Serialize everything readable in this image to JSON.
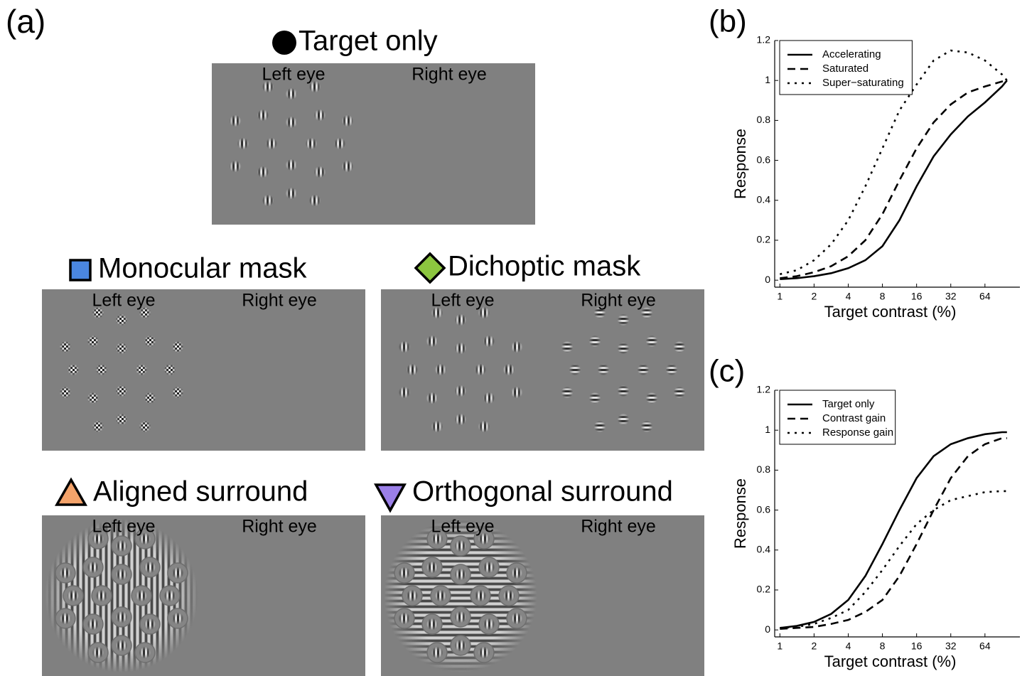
{
  "stimuli_panel_label": "(a)",
  "stimuli": [
    {
      "title": "Target only",
      "left_label": "Left eye",
      "right_label": "Right eye"
    },
    {
      "title": "Monocular mask",
      "left_label": "Left eye",
      "right_label": "Right eye"
    },
    {
      "title": "Dichoptic mask",
      "left_label": "Left eye",
      "right_label": "Right eye"
    },
    {
      "title": "Aligned surround",
      "left_label": "Left eye",
      "right_label": "Right eye"
    },
    {
      "title": "Orthogonal surround",
      "left_label": "Left eye",
      "right_label": "Right eye"
    }
  ],
  "chart_data": [
    {
      "type": "line",
      "panel_label": "(b)",
      "x_label": "Target contrast (%)",
      "y_label": "Response",
      "xscale": "log",
      "xlim": [
        0.9,
        130
      ],
      "xticks": [
        1,
        2,
        4,
        8,
        16,
        32,
        64
      ],
      "ylim": [
        -0.035,
        1.2
      ],
      "yticks": [
        0,
        0.2,
        0.4,
        0.6,
        0.8,
        1,
        1.2
      ],
      "legend": "upper left",
      "x": [
        1,
        1.41,
        2,
        2.83,
        4,
        5.66,
        8,
        11.3,
        16,
        22.6,
        32,
        45.3,
        64,
        90.5,
        100
      ],
      "series": [
        {
          "name": "Accelerating",
          "color": "#000000",
          "dash": "solid",
          "values": [
            0.005,
            0.01,
            0.02,
            0.035,
            0.06,
            0.1,
            0.17,
            0.3,
            0.47,
            0.62,
            0.73,
            0.82,
            0.89,
            0.97,
            1.0
          ]
        },
        {
          "name": "Saturated",
          "color": "#000000",
          "dash": "dashed",
          "values": [
            0.01,
            0.02,
            0.04,
            0.07,
            0.12,
            0.2,
            0.33,
            0.5,
            0.66,
            0.79,
            0.88,
            0.94,
            0.97,
            0.995,
            1.0
          ]
        },
        {
          "name": "Super−saturating",
          "color": "#000000",
          "dash": "dotted",
          "values": [
            0.03,
            0.05,
            0.1,
            0.18,
            0.3,
            0.47,
            0.66,
            0.85,
            0.98,
            1.1,
            1.15,
            1.14,
            1.1,
            1.03,
            1.0
          ]
        }
      ]
    },
    {
      "type": "line",
      "panel_label": "(c)",
      "x_label": "Target contrast (%)",
      "y_label": "Response",
      "xscale": "log",
      "xlim": [
        0.9,
        130
      ],
      "xticks": [
        1,
        2,
        4,
        8,
        16,
        32,
        64
      ],
      "ylim": [
        -0.035,
        1.2
      ],
      "yticks": [
        0,
        0.2,
        0.4,
        0.6,
        0.8,
        1,
        1.2
      ],
      "legend": "upper left",
      "x": [
        1,
        1.41,
        2,
        2.83,
        4,
        5.66,
        8,
        11.3,
        16,
        22.6,
        32,
        45.3,
        64,
        90.5,
        100
      ],
      "series": [
        {
          "name": "Target only",
          "color": "#000000",
          "dash": "solid",
          "values": [
            0.01,
            0.02,
            0.04,
            0.08,
            0.15,
            0.27,
            0.43,
            0.6,
            0.76,
            0.87,
            0.93,
            0.96,
            0.98,
            0.99,
            0.99
          ]
        },
        {
          "name": "Contrast gain",
          "color": "#000000",
          "dash": "dashed",
          "values": [
            0.005,
            0.01,
            0.015,
            0.03,
            0.05,
            0.09,
            0.15,
            0.27,
            0.43,
            0.6,
            0.76,
            0.87,
            0.93,
            0.96,
            0.96
          ]
        },
        {
          "name": "Response gain",
          "color": "#000000",
          "dash": "dotted",
          "values": [
            0.01,
            0.015,
            0.03,
            0.06,
            0.1,
            0.19,
            0.3,
            0.42,
            0.53,
            0.6,
            0.65,
            0.67,
            0.69,
            0.695,
            0.695
          ]
        }
      ]
    }
  ]
}
